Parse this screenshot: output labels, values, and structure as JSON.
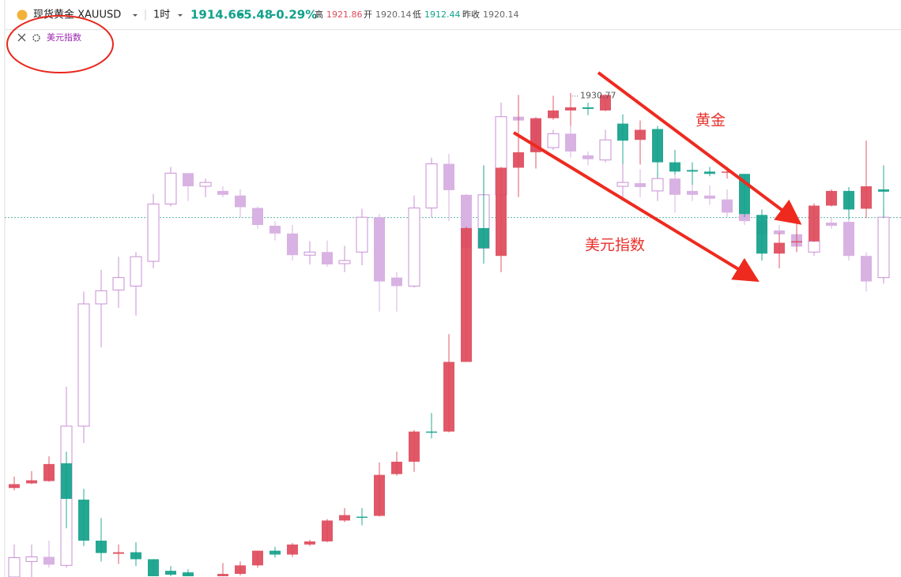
{
  "header": {
    "symbol": "现货黄金 XAUUSD",
    "interval": "1时",
    "price": 1914.66,
    "change": -5.48,
    "change_pct": "-0.29%",
    "high_label": "高",
    "high": 1921.86,
    "open_label": "开",
    "open": 1920.14,
    "low_label": "低",
    "low": 1912.44,
    "prev_close_label": "昨收",
    "prev_close": 1920.14
  },
  "indicator": "美元指数",
  "annotations": [
    "黄金",
    "美元指数"
  ],
  "chart_data": {
    "type": "candlestick",
    "ylim": [
      1868.2,
      1938.9
    ],
    "high_label": 1930.77,
    "series": [
      {
        "color": "#d9d9d9",
        "up_color": "#c98fd6",
        "down_color": "#d8b2e2",
        "open": [
          1868.2,
          1870.2,
          1870.8,
          1869.7,
          1887.7,
          1903.5,
          1905.3,
          1905.8,
          1909.0,
          1916.4,
          1920.4,
          1918.7,
          1918.1,
          1917.5,
          1915.9,
          1913.6,
          1912.6,
          1909.8,
          1910.2,
          1908.7,
          1910.2,
          1914.7,
          1906.9,
          1905.8,
          1915.9,
          1921.6,
          1917.6,
          1910.7,
          1917.6,
          1927.7,
          1927.3,
          1923.7,
          1925.5,
          1922.7,
          1922.1,
          1918.7,
          1919.1,
          1918.1,
          1919.7,
          1918.1,
          1917.5,
          1917.0,
          1915.1,
          1914.2,
          1913.0,
          1912.5,
          1910.2,
          1914.0,
          1914.1,
          1909.7,
          1906.9
        ],
        "high": [
          1872.4,
          1872.4,
          1872.9,
          1892.8,
          1905.1,
          1907.9,
          1909.6,
          1910.2,
          1917.7,
          1921.2,
          1920.4,
          1919.7,
          1918.7,
          1918.3,
          1916.1,
          1914.2,
          1913.7,
          1911.6,
          1911.7,
          1911.0,
          1915.8,
          1915.1,
          1907.6,
          1917.5,
          1922.4,
          1922.9,
          1917.7,
          1921.4,
          1929.5,
          1930.5,
          1927.7,
          1926.0,
          1926.5,
          1923.2,
          1926.0,
          1921.9,
          1920.9,
          1920.4,
          1921.4,
          1919.3,
          1918.8,
          1918.3,
          1915.8,
          1914.7,
          1913.7,
          1913.2,
          1913.2,
          1914.7,
          1914.4,
          1910.2,
          1916.1
        ],
        "low": [
          1868.2,
          1868.2,
          1869.4,
          1869.4,
          1885.5,
          1897.9,
          1903.0,
          1902.0,
          1908.1,
          1916.1,
          1916.8,
          1917.3,
          1917.3,
          1914.7,
          1913.2,
          1911.7,
          1909.1,
          1908.6,
          1908.3,
          1907.6,
          1908.5,
          1902.5,
          1902.5,
          1905.6,
          1914.7,
          1914.2,
          1910.4,
          1909.1,
          1917.6,
          1926.5,
          1923.0,
          1923.4,
          1922.4,
          1921.4,
          1921.8,
          1916.8,
          1917.3,
          1916.8,
          1915.3,
          1916.8,
          1916.3,
          1914.7,
          1913.7,
          1911.7,
          1912.2,
          1910.4,
          1909.7,
          1913.2,
          1909.1,
          1905.1,
          1906.1
        ],
        "close": [
          1870.7,
          1870.8,
          1869.8,
          1887.7,
          1903.5,
          1905.2,
          1906.9,
          1909.6,
          1916.4,
          1920.4,
          1918.7,
          1919.2,
          1917.6,
          1916.0,
          1913.7,
          1912.6,
          1909.8,
          1910.2,
          1908.6,
          1909.1,
          1914.7,
          1906.4,
          1905.8,
          1915.9,
          1921.6,
          1918.2,
          1910.7,
          1917.6,
          1927.7,
          1927.2,
          1923.2,
          1925.5,
          1923.2,
          1922.2,
          1924.7,
          1919.2,
          1918.6,
          1919.7,
          1917.6,
          1917.6,
          1917.1,
          1915.3,
          1914.2,
          1912.5,
          1912.5,
          1910.9,
          1911.6,
          1913.6,
          1909.7,
          1906.4,
          1914.7
        ]
      },
      {
        "color": "#12a18a",
        "up_color": "#de4a5b",
        "down_color": "#12a18a",
        "open": [
          1879.7,
          1880.3,
          1880.6,
          1882.9,
          1878.2,
          1872.9,
          1871.2,
          1871.4,
          1870.5,
          1869.0,
          1868.8,
          null,
          1868.3,
          1868.6,
          1869.7,
          1871.6,
          1871.1,
          1872.4,
          1872.8,
          1875.5,
          1876.0,
          1876.1,
          1881.5,
          1883.1,
          1887.0,
          1887.0,
          1896.0,
          1913.3,
          1909.7,
          1921.1,
          1923.1,
          1927.5,
          1928.5,
          1928.9,
          1928.5,
          1926.8,
          1924.7,
          1926.1,
          1921.8,
          1920.8,
          1920.6,
          1920.5,
          1920.3,
          1915.0,
          1910.0,
          1911.5,
          1911.6,
          1916.2,
          1918.1,
          1915.8,
          1918.3
        ],
        "high": [
          1881.2,
          1881.9,
          1883.8,
          1884.4,
          1879.6,
          1875.8,
          1872.4,
          1872.7,
          1870.5,
          1869.6,
          1869.2,
          null,
          1870.0,
          1870.2,
          1871.6,
          1872.1,
          1872.6,
          1873.0,
          1875.7,
          1877.1,
          1877.1,
          1883.0,
          1884.4,
          1887.2,
          1889.4,
          1899.6,
          1913.5,
          1921.4,
          1921.2,
          1930.5,
          1927.6,
          1930.4,
          1930.77,
          1929.5,
          1930.6,
          1928.0,
          1927.2,
          1926.5,
          1923.4,
          1921.8,
          1921.2,
          1921.2,
          1920.3,
          1915.7,
          1912.7,
          1913.9,
          1916.5,
          1918.3,
          1918.6,
          1924.6,
          1921.4
        ],
        "low": [
          1879.4,
          1880.2,
          1880.5,
          1874.5,
          1872.2,
          1870.2,
          1869.9,
          1869.6,
          1868.3,
          1868.3,
          1868.3,
          null,
          1868.3,
          1868.4,
          1869.4,
          1870.7,
          1870.8,
          1872.2,
          1872.7,
          1875.3,
          1874.9,
          1876.0,
          1881.3,
          1881.8,
          1886.1,
          1886.9,
          1896.0,
          1908.7,
          1907.6,
          1917.3,
          1921.0,
          1927.3,
          1926.5,
          1927.9,
          1928.4,
          1921.6,
          1921.5,
          1919.8,
          1920.2,
          1918.9,
          1920.0,
          1919.7,
          1914.7,
          1909.1,
          1908.1,
          1910.2,
          1911.5,
          1916.1,
          1914.4,
          1914.6,
          1914.6
        ],
        "close": [
          1880.2,
          1880.7,
          1882.8,
          1878.3,
          1872.9,
          1871.3,
          1871.4,
          1870.5,
          1868.3,
          1868.5,
          1868.3,
          null,
          1868.6,
          1869.7,
          1871.6,
          1871.1,
          1872.4,
          1872.8,
          1875.5,
          1876.2,
          1875.9,
          1881.4,
          1883.1,
          1887.0,
          1886.9,
          1896.0,
          1913.3,
          1910.7,
          1921.1,
          1923.1,
          1927.5,
          1928.5,
          1928.9,
          1928.7,
          1930.5,
          1924.6,
          1926.0,
          1921.8,
          1920.6,
          1920.6,
          1920.3,
          1920.6,
          1915.1,
          1910.0,
          1911.4,
          1911.6,
          1916.2,
          1918.1,
          1915.7,
          1918.7,
          1918.0
        ]
      }
    ]
  }
}
